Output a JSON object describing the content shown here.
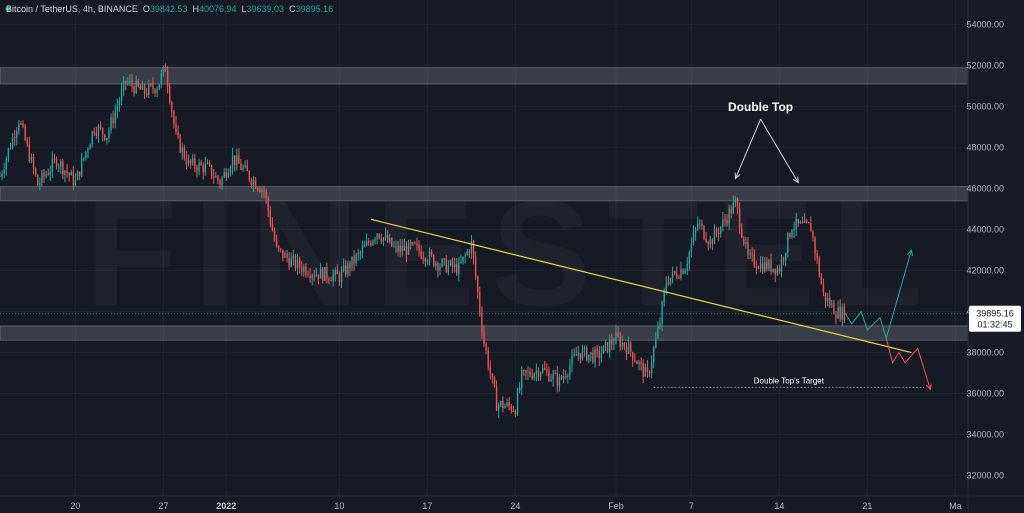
{
  "header": {
    "symbol": "Bitcoin / TetherUS, 4h, BINANCE",
    "o_label": "O",
    "o_value": "39842.53",
    "h_label": "H",
    "h_value": "40076.94",
    "l_label": "L",
    "l_value": "39639.03",
    "c_label": "C",
    "c_value": "39895.16"
  },
  "watermark": "FINESTEL",
  "price_label": {
    "price": "39895.16",
    "countdown": "01:32:45"
  },
  "annotations": {
    "double_top": "Double Top",
    "target": "Double Top's Target"
  },
  "colors": {
    "background": "#161a25",
    "up": "#26a69a",
    "down": "#ef5350",
    "zone": "#b8bcc6",
    "trendline": "#e8d44d",
    "target_line": "#9598a1",
    "bull_projection": "#26a69a",
    "bear_projection": "#ef5350",
    "arrow": "#d1d4dc"
  },
  "chart_data": {
    "type": "candlestick",
    "title": "Bitcoin / TetherUS, 4h, BINANCE",
    "timeframe": "4h",
    "x_domain": [
      "2021-12-14",
      "2022-03-01"
    ],
    "ylim": [
      31000,
      55200
    ],
    "yticks": [
      32000,
      34000,
      36000,
      38000,
      40000,
      42000,
      44000,
      46000,
      48000,
      50000,
      52000,
      54000
    ],
    "xticks": [
      {
        "date": "2021-12-20",
        "label": "20"
      },
      {
        "date": "2021-12-27",
        "label": "27"
      },
      {
        "date": "2022-01-01",
        "label": "2022",
        "bold": true
      },
      {
        "date": "2022-01-10",
        "label": "10"
      },
      {
        "date": "2022-01-17",
        "label": "17"
      },
      {
        "date": "2022-01-24",
        "label": "24"
      },
      {
        "date": "2022-02-01",
        "label": "Feb"
      },
      {
        "date": "2022-02-07",
        "label": "7"
      },
      {
        "date": "2022-02-14",
        "label": "14"
      },
      {
        "date": "2022-02-21",
        "label": "21"
      },
      {
        "date": "2022-02-28",
        "label": "Ma"
      }
    ],
    "price_anchors": [
      [
        "2021-12-14 00:00",
        46600
      ],
      [
        "2021-12-15 12:00",
        49400
      ],
      [
        "2021-12-17 00:00",
        46200
      ],
      [
        "2021-12-18 12:00",
        47400
      ],
      [
        "2021-12-20 00:00",
        46300
      ],
      [
        "2021-12-21 12:00",
        49000
      ],
      [
        "2021-12-22 12:00",
        48600
      ],
      [
        "2021-12-24 00:00",
        51200
      ],
      [
        "2021-12-25 12:00",
        50700
      ],
      [
        "2021-12-26 12:00",
        51000
      ],
      [
        "2021-12-27 04:00",
        51900
      ],
      [
        "2021-12-28 00:00",
        48500
      ],
      [
        "2021-12-29 00:00",
        47200
      ],
      [
        "2021-12-30 12:00",
        47000
      ],
      [
        "2021-12-31 12:00",
        46300
      ],
      [
        "2022-01-01 12:00",
        47500
      ],
      [
        "2022-01-03 00:00",
        46500
      ],
      [
        "2022-01-04 00:00",
        45900
      ],
      [
        "2022-01-05 00:00",
        43000
      ],
      [
        "2022-01-06 12:00",
        42300
      ],
      [
        "2022-01-08 00:00",
        41900
      ],
      [
        "2022-01-10 00:00",
        41700
      ],
      [
        "2022-01-11 12:00",
        42700
      ],
      [
        "2022-01-13 00:00",
        43900
      ],
      [
        "2022-01-14 12:00",
        43000
      ],
      [
        "2022-01-16 00:00",
        43100
      ],
      [
        "2022-01-18 00:00",
        42300
      ],
      [
        "2022-01-19 12:00",
        42100
      ],
      [
        "2022-01-20 12:00",
        43300
      ],
      [
        "2022-01-21 12:00",
        38500
      ],
      [
        "2022-01-22 12:00",
        35500
      ],
      [
        "2022-01-24 00:00",
        35300
      ],
      [
        "2022-01-24 12:00",
        36800
      ],
      [
        "2022-01-26 00:00",
        37200
      ],
      [
        "2022-01-27 12:00",
        36600
      ],
      [
        "2022-01-29 00:00",
        38000
      ],
      [
        "2022-01-30 12:00",
        37800
      ],
      [
        "2022-02-01 00:00",
        38700
      ],
      [
        "2022-02-02 00:00",
        38200
      ],
      [
        "2022-02-03 12:00",
        36800
      ],
      [
        "2022-02-04 12:00",
        39500
      ],
      [
        "2022-02-05 00:00",
        41500
      ],
      [
        "2022-02-06 12:00",
        42200
      ],
      [
        "2022-02-07 12:00",
        44300
      ],
      [
        "2022-02-08 12:00",
        43400
      ],
      [
        "2022-02-09 12:00",
        44300
      ],
      [
        "2022-02-10 12:00",
        45300
      ],
      [
        "2022-02-11 12:00",
        42600
      ],
      [
        "2022-02-12 12:00",
        42300
      ],
      [
        "2022-02-14 00:00",
        42100
      ],
      [
        "2022-02-15 00:00",
        44200
      ],
      [
        "2022-02-16 12:00",
        44100
      ],
      [
        "2022-02-17 12:00",
        40800
      ],
      [
        "2022-02-18 12:00",
        40000
      ],
      [
        "2022-02-19 06:00",
        39895
      ]
    ],
    "zones": [
      {
        "from": 51100,
        "to": 51900
      },
      {
        "from": 45400,
        "to": 46100
      },
      {
        "from": 38600,
        "to": 39300
      }
    ],
    "trendline": {
      "from": [
        "2022-01-12 12:00",
        44500
      ],
      "to": [
        "2022-02-24 12:00",
        38000
      ]
    },
    "target_line": {
      "from": [
        "2022-02-04 00:00",
        36300
      ],
      "to": [
        "2022-02-25 12:00",
        36300
      ]
    },
    "double_top": {
      "peaks": [
        [
          "2022-02-10 12:00",
          46100
        ],
        [
          "2022-02-15 12:00",
          45900
        ]
      ],
      "label_point": [
        "2022-02-12 12:00",
        48800
      ]
    },
    "bull_projection": [
      [
        "2022-02-19 06:00",
        39900
      ],
      [
        "2022-02-19 18:00",
        39400
      ],
      [
        "2022-02-20 12:00",
        40000
      ],
      [
        "2022-02-21 00:00",
        39100
      ],
      [
        "2022-02-22 00:00",
        39700
      ],
      [
        "2022-02-22 12:00",
        38700
      ],
      [
        "2022-02-24 12:00",
        43000
      ]
    ],
    "bear_projection": [
      [
        "2022-02-22 12:00",
        38700
      ],
      [
        "2022-02-23 00:00",
        37500
      ],
      [
        "2022-02-23 12:00",
        38000
      ],
      [
        "2022-02-24 00:00",
        37500
      ],
      [
        "2022-02-25 00:00",
        38200
      ],
      [
        "2022-02-26 00:00",
        36200
      ]
    ]
  }
}
